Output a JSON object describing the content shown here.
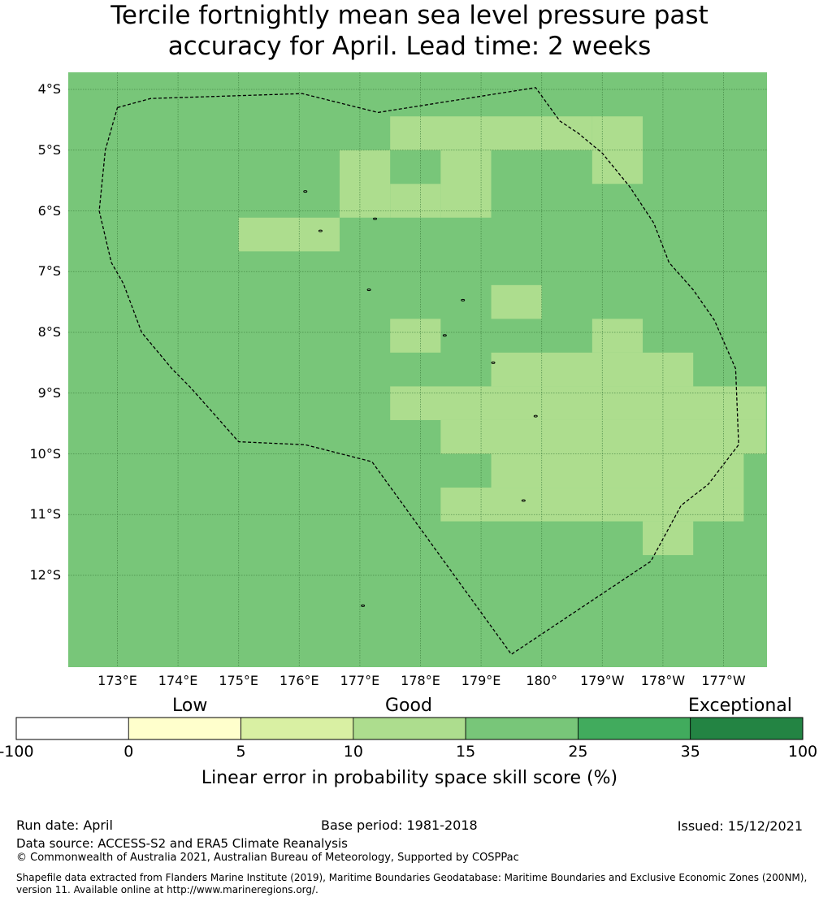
{
  "title_line1": "Tercile fortnightly mean sea level pressure past",
  "title_line2": "accuracy for April. Lead time: 2 weeks",
  "map": {
    "lon_range": [
      172.2,
      183.7
    ],
    "lat_range": [
      -13.5,
      -3.7
    ],
    "lat_labels": [
      "4°S",
      "5°S",
      "6°S",
      "7°S",
      "8°S",
      "9°S",
      "10°S",
      "11°S",
      "12°S"
    ],
    "lat_values": [
      -4,
      -5,
      -6,
      -7,
      -8,
      -9,
      -10,
      -11,
      -12
    ],
    "lon_labels": [
      "173°E",
      "174°E",
      "175°E",
      "176°E",
      "177°E",
      "178°E",
      "179°E",
      "180°",
      "179°W",
      "178°W",
      "177°W"
    ],
    "lon_values": [
      173,
      174,
      175,
      176,
      177,
      178,
      179,
      180,
      181,
      182,
      183
    ],
    "background_category": "15-25",
    "background_color": "#78c679",
    "highlight_category": "10-15",
    "highlight_color": "#addd8e",
    "grid_color": "#3a7a3a",
    "cell_lon_width": 0.833,
    "cell_lat_height": 0.5555,
    "highlight_cells": [
      {
        "lon0": 177.5,
        "lon1": 180.8333,
        "lat_top": -4.4444,
        "lat_bot": -5.0
      },
      {
        "lon0": 180.8333,
        "lon1": 181.6667,
        "lat_top": -4.4444,
        "lat_bot": -5.5556
      },
      {
        "lon0": 176.6667,
        "lon1": 177.5,
        "lat_top": -5.0,
        "lat_bot": -6.1111
      },
      {
        "lon0": 177.5,
        "lon1": 178.3333,
        "lat_top": -5.5556,
        "lat_bot": -6.1111
      },
      {
        "lon0": 178.3333,
        "lon1": 179.1667,
        "lat_top": -5.0,
        "lat_bot": -6.1111
      },
      {
        "lon0": 175.0,
        "lon1": 176.6667,
        "lat_top": -6.1111,
        "lat_bot": -6.6667
      },
      {
        "lon0": 179.1667,
        "lon1": 180.0,
        "lat_top": -7.2222,
        "lat_bot": -7.7778
      },
      {
        "lon0": 177.5,
        "lon1": 178.3333,
        "lat_top": -7.7778,
        "lat_bot": -8.3333
      },
      {
        "lon0": 180.8333,
        "lon1": 181.6667,
        "lat_top": -7.7778,
        "lat_bot": -8.3333
      },
      {
        "lon0": 179.1667,
        "lon1": 182.5,
        "lat_top": -8.3333,
        "lat_bot": -8.8889
      },
      {
        "lon0": 177.5,
        "lon1": 183.7,
        "lat_top": -8.8889,
        "lat_bot": -9.4444
      },
      {
        "lon0": 178.3333,
        "lon1": 183.7,
        "lat_top": -9.4444,
        "lat_bot": -10.0
      },
      {
        "lon0": 179.1667,
        "lon1": 183.3333,
        "lat_top": -10.0,
        "lat_bot": -10.5556
      },
      {
        "lon0": 178.3333,
        "lon1": 183.3333,
        "lat_top": -10.5556,
        "lat_bot": -11.1111
      },
      {
        "lon0": 181.6667,
        "lon1": 182.5,
        "lat_top": -11.1111,
        "lat_bot": -11.6667
      }
    ],
    "eez_boundary": [
      [
        173.0,
        -4.3
      ],
      [
        173.55,
        -4.15
      ],
      [
        176.05,
        -4.07
      ],
      [
        177.3,
        -4.38
      ],
      [
        179.9,
        -3.97
      ],
      [
        180.3,
        -4.52
      ],
      [
        180.6,
        -4.72
      ],
      [
        181.0,
        -5.05
      ],
      [
        181.45,
        -5.6
      ],
      [
        181.85,
        -6.2
      ],
      [
        182.1,
        -6.85
      ],
      [
        182.5,
        -7.3
      ],
      [
        182.85,
        -7.8
      ],
      [
        183.2,
        -8.6
      ],
      [
        183.25,
        -9.85
      ],
      [
        182.75,
        -10.5
      ],
      [
        182.3,
        -10.85
      ],
      [
        181.8,
        -11.77
      ],
      [
        179.5,
        -13.3
      ],
      [
        177.2,
        -10.13
      ],
      [
        176.1,
        -9.85
      ],
      [
        175.0,
        -9.8
      ],
      [
        174.2,
        -8.9
      ],
      [
        173.9,
        -8.6
      ],
      [
        173.4,
        -8.0
      ],
      [
        173.1,
        -7.2
      ],
      [
        172.9,
        -6.85
      ],
      [
        172.7,
        -6.0
      ],
      [
        172.8,
        -5.0
      ],
      [
        173.0,
        -4.3
      ]
    ],
    "islands": [
      [
        176.1,
        -5.68
      ],
      [
        177.25,
        -6.13
      ],
      [
        176.35,
        -6.33
      ],
      [
        177.15,
        -7.3
      ],
      [
        178.7,
        -7.47
      ],
      [
        178.4,
        -8.05
      ],
      [
        179.2,
        -8.5
      ],
      [
        179.9,
        -9.38
      ],
      [
        179.7,
        -10.77
      ],
      [
        177.05,
        -12.5
      ]
    ]
  },
  "colorbar": {
    "category_labels": [
      "Low",
      "Good",
      "Exceptional"
    ],
    "ticks": [
      "-100",
      "0",
      "5",
      "10",
      "15",
      "25",
      "35",
      "100"
    ],
    "colors": [
      "#ffffff",
      "#ffffcc",
      "#d9f0a3",
      "#addd8e",
      "#78c679",
      "#41ab5d",
      "#238443"
    ],
    "label": "Linear error in probability space skill score (%)"
  },
  "footer": {
    "run_date": "Run date: April",
    "base_period": "Base period: 1981-2018",
    "issued": "Issued: 15/12/2021",
    "data_source": "Data source: ACCESS-S2 and ERA5 Climate Reanalysis",
    "copyright": "© Commonwealth of Australia 2021, Australian Bureau of Meteorology, Supported by COSPPac",
    "shapefile": "Shapefile data extracted from Flanders Marine Institute (2019), Maritime Boundaries Geodatabase: Maritime Boundaries and Exclusive Economic Zones (200NM), version 11. Available online at http://www.marineregions.org/."
  }
}
